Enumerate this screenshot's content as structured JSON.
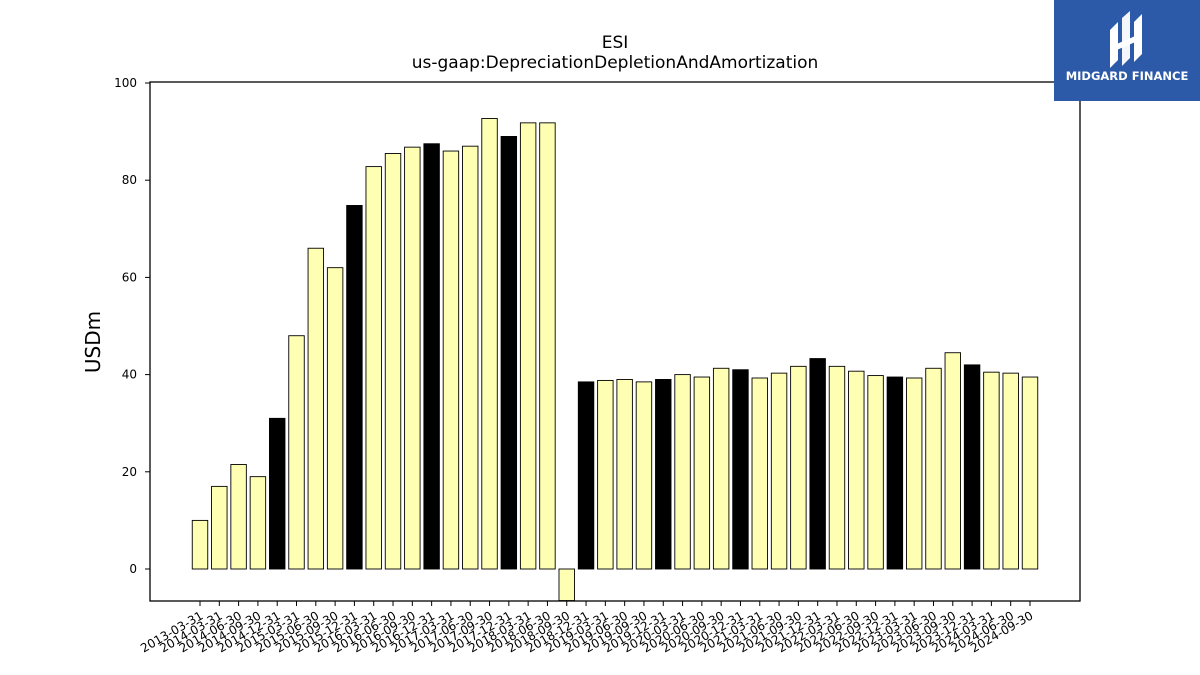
{
  "logo": {
    "text": "MIDGARD FINANCE",
    "bg": "#2d5aa8"
  },
  "chart_data": {
    "type": "bar",
    "title": "ESI",
    "subtitle": "us-gaap:DepreciationDepletionAndAmortization",
    "ylabel": "USDm",
    "xlabel": "",
    "ylim": [
      -6.5,
      100.5
    ],
    "yticks": [
      0,
      20,
      40,
      60,
      80,
      100
    ],
    "colors": {
      "quarter": "#ffffb3",
      "year_end": "#000000",
      "edge": "#000000"
    },
    "categories": [
      "2013-03-31",
      "2014-03-31",
      "2014-06-30",
      "2014-09-30",
      "2014-12-31",
      "2015-03-31",
      "2015-06-30",
      "2015-09-30",
      "2015-12-31",
      "2016-03-31",
      "2016-06-30",
      "2016-09-30",
      "2016-12-31",
      "2017-03-31",
      "2017-06-30",
      "2017-09-30",
      "2017-12-31",
      "2018-03-31",
      "2018-06-30",
      "2018-09-30",
      "2018-12-31",
      "2019-03-31",
      "2019-06-30",
      "2019-09-30",
      "2019-12-31",
      "2020-03-31",
      "2020-06-30",
      "2020-09-30",
      "2020-12-31",
      "2021-03-31",
      "2021-06-30",
      "2021-09-30",
      "2021-12-31",
      "2022-03-31",
      "2022-06-30",
      "2022-09-30",
      "2022-12-31",
      "2023-03-31",
      "2023-06-30",
      "2023-09-30",
      "2023-12-31",
      "2024-03-31",
      "2024-06-30",
      "2024-09-30"
    ],
    "values": [
      10.0,
      17.0,
      21.5,
      19.0,
      31.0,
      48.0,
      66.0,
      62.0,
      74.8,
      82.8,
      85.5,
      86.8,
      87.5,
      86.0,
      87.0,
      92.7,
      89.0,
      91.8,
      91.8,
      -6.5,
      38.5,
      38.8,
      39.0,
      38.5,
      39.0,
      40.0,
      39.5,
      41.3,
      41.0,
      39.3,
      40.3,
      41.7,
      43.3,
      41.7,
      40.7,
      39.8,
      39.5,
      39.3,
      41.3,
      44.5,
      42.0,
      40.5,
      40.3,
      39.5
    ],
    "year_end_flags": [
      false,
      false,
      false,
      false,
      true,
      false,
      false,
      false,
      true,
      false,
      false,
      false,
      true,
      false,
      false,
      false,
      true,
      false,
      false,
      false,
      true,
      false,
      false,
      false,
      true,
      false,
      false,
      false,
      true,
      false,
      false,
      false,
      true,
      false,
      false,
      false,
      true,
      false,
      false,
      false,
      true,
      false,
      false,
      false
    ]
  }
}
